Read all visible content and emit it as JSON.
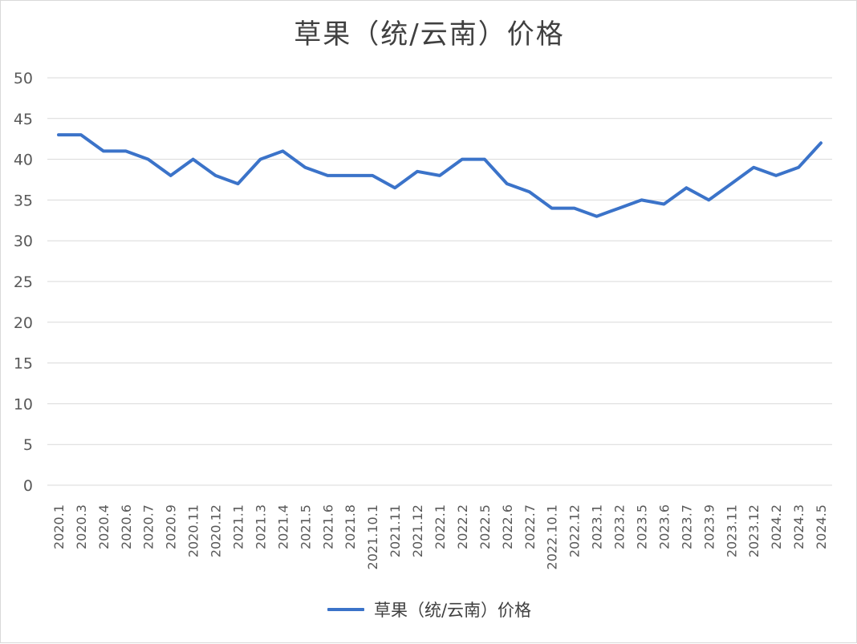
{
  "chart_data": {
    "type": "line",
    "title": "草果（统/云南）价格",
    "xlabel": "",
    "ylabel": "",
    "ylim": [
      0,
      50
    ],
    "yticks": [
      "0",
      "5",
      "10",
      "15",
      "20",
      "25",
      "30",
      "35",
      "40",
      "45",
      "50"
    ],
    "grid": true,
    "legend": "bottom",
    "categories": [
      "2020.1",
      "2020.3",
      "2020.4",
      "2020.6",
      "2020.7",
      "2020.9",
      "2020.11",
      "2020.12",
      "2021.1",
      "2021.3",
      "2021.4",
      "2021.5",
      "2021.6",
      "2021.8",
      "2021.10.1",
      "2021.11",
      "2021.12",
      "2022.1",
      "2022.2",
      "2022.5",
      "2022.6",
      "2022.7",
      "2022.10.1",
      "2022.12",
      "2023.1",
      "2023.2",
      "2023.5",
      "2023.6",
      "2023.7",
      "2023.9",
      "2023.11",
      "2023.12",
      "2024.2",
      "2024.3",
      "2024.5"
    ],
    "series": [
      {
        "name": "草果（统/云南）价格",
        "color": "#3b73c9",
        "values": [
          43,
          43,
          41,
          41,
          40,
          38,
          40,
          38,
          37,
          40,
          41,
          39,
          38,
          38,
          38,
          36.5,
          38.5,
          38,
          40,
          40,
          37,
          36,
          34,
          34,
          33,
          34,
          35,
          34.5,
          36.5,
          35,
          37,
          39,
          38,
          39,
          42
        ]
      }
    ]
  }
}
